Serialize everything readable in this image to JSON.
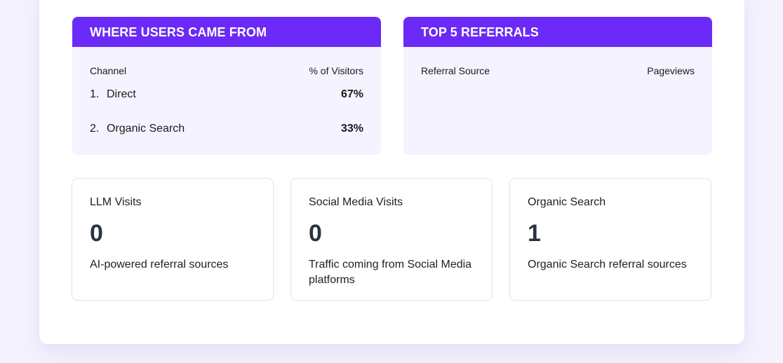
{
  "colors": {
    "accent": "#6b2af7",
    "panel_bg": "#f5f3ff",
    "page_bg": "#f5f3fe",
    "card_border": "#e4e2f3",
    "stat_value": "#2b3340"
  },
  "channels_panel": {
    "title": "WHERE USERS CAME FROM",
    "col_left": "Channel",
    "col_right": "% of Visitors",
    "rows": [
      {
        "index": "1.",
        "label": "Direct",
        "value": "67%"
      },
      {
        "index": "2.",
        "label": "Organic Search",
        "value": "33%"
      }
    ]
  },
  "referrals_panel": {
    "title": "TOP 5 REFERRALS",
    "col_left": "Referral Source",
    "col_right": "Pageviews",
    "rows": []
  },
  "stats": [
    {
      "title": "LLM Visits",
      "value": "0",
      "description": "AI-powered referral sources"
    },
    {
      "title": "Social Media Visits",
      "value": "0",
      "description": "Traffic coming from Social Media platforms"
    },
    {
      "title": "Organic Search",
      "value": "1",
      "description": "Organic Search referral sources"
    }
  ]
}
